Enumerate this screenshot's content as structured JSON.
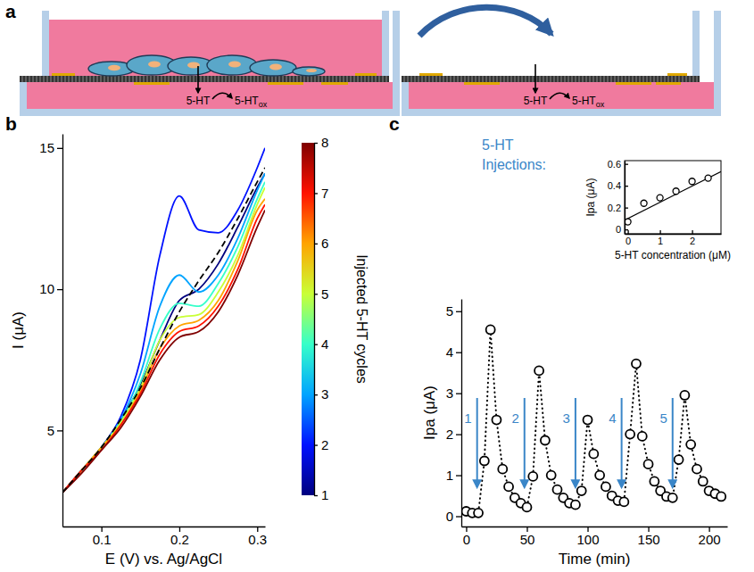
{
  "chart_data": [
    {
      "type": "diagram",
      "panel": "a",
      "labels": {
        "reactant": "5-HT",
        "product": "5-HT",
        "product_subscript": "ox"
      }
    },
    {
      "type": "line",
      "panel": "b",
      "xlabel": "E (V) vs. Ag/AgCl",
      "ylabel": "I (μA)",
      "x": [
        0.05,
        0.075,
        0.1,
        0.125,
        0.15,
        0.175,
        0.2,
        0.225,
        0.25,
        0.275,
        0.3,
        0.31
      ],
      "xlim": [
        0.05,
        0.31
      ],
      "xticks": [
        0.1,
        0.2,
        0.3
      ],
      "ylim": [
        1.6,
        15.5
      ],
      "yticks": [
        5,
        10,
        15
      ],
      "series": [
        {
          "color": "#00007f",
          "cycle": 1,
          "values": [
            2.8,
            3.6,
            4.4,
            5.4,
            6.6,
            8.2,
            9.6,
            10.0,
            10.9,
            12.2,
            13.6,
            14.1
          ]
        },
        {
          "color": "#0012ff",
          "cycle": 2,
          "values": [
            2.8,
            3.6,
            4.4,
            5.5,
            7.5,
            11.2,
            13.3,
            12.1,
            12.0,
            12.8,
            14.3,
            15.0
          ]
        },
        {
          "color": "#00a4ff",
          "cycle": 3,
          "values": [
            2.8,
            3.6,
            4.4,
            5.4,
            7.0,
            9.4,
            10.5,
            9.9,
            10.5,
            11.8,
            13.5,
            14.1
          ]
        },
        {
          "color": "#36ffc9",
          "cycle": 4,
          "values": [
            2.8,
            3.6,
            4.4,
            5.3,
            6.7,
            8.6,
            9.5,
            9.4,
            10.2,
            11.5,
            13.2,
            13.8
          ]
        },
        {
          "color": "#c9ff36",
          "cycle": 5,
          "values": [
            2.8,
            3.6,
            4.4,
            5.3,
            6.5,
            8.2,
            9.0,
            9.1,
            9.9,
            11.2,
            13.0,
            13.6
          ]
        },
        {
          "color": "#ffa400",
          "cycle": 6,
          "values": [
            2.8,
            3.6,
            4.4,
            5.2,
            6.4,
            7.9,
            8.7,
            8.9,
            9.6,
            11.0,
            12.8,
            13.2
          ]
        },
        {
          "color": "#ff1200",
          "cycle": 7,
          "values": [
            2.8,
            3.6,
            4.3,
            5.2,
            6.3,
            7.7,
            8.5,
            8.7,
            9.4,
            10.7,
            12.5,
            13.0
          ]
        },
        {
          "color": "#7f0000",
          "cycle": 8,
          "values": [
            2.8,
            3.5,
            4.3,
            5.1,
            6.2,
            7.5,
            8.3,
            8.5,
            9.2,
            10.5,
            12.2,
            12.8
          ]
        },
        {
          "color": "#000000",
          "line_style": "dashed",
          "values": [
            2.8,
            3.6,
            4.4,
            5.4,
            6.5,
            7.9,
            9.2,
            10.3,
            11.3,
            12.5,
            13.8,
            14.3
          ]
        }
      ],
      "colorbar": {
        "label": "Injected 5-HT cycles",
        "range": [
          1,
          8
        ],
        "ticks": [
          1,
          2,
          3,
          4,
          5,
          6,
          7,
          8
        ]
      }
    },
    {
      "type": "scatter",
      "panel": "c",
      "xlabel": "Time (min)",
      "ylabel": "Ipa (μA)",
      "x": [
        0,
        5,
        10,
        15,
        20,
        25,
        30,
        35,
        40,
        45,
        50,
        55,
        60,
        65,
        70,
        75,
        80,
        85,
        90,
        95,
        100,
        105,
        110,
        115,
        120,
        125,
        130,
        135,
        140,
        145,
        150,
        155,
        160,
        165,
        170,
        175,
        180,
        185,
        190,
        195,
        200,
        205,
        210
      ],
      "values": [
        0.12,
        0.08,
        0.08,
        1.35,
        4.55,
        2.35,
        1.15,
        0.72,
        0.45,
        0.32,
        0.22,
        0.97,
        3.55,
        1.85,
        1.0,
        0.65,
        0.45,
        0.32,
        0.28,
        0.62,
        2.35,
        1.52,
        1.0,
        0.72,
        0.5,
        0.38,
        0.35,
        2.0,
        3.72,
        1.95,
        1.27,
        0.85,
        0.62,
        0.48,
        0.45,
        1.38,
        2.95,
        1.75,
        1.15,
        0.85,
        0.62,
        0.55,
        0.48
      ],
      "marker": "circle",
      "line_style": "dotted",
      "xlim": [
        -4,
        215
      ],
      "xticks": [
        0,
        50,
        100,
        150,
        200
      ],
      "ylim": [
        -0.25,
        5.3
      ],
      "yticks": [
        0,
        1,
        2,
        3,
        4,
        5
      ],
      "annotation_lines": [
        "5-HT",
        "Injections:"
      ],
      "injections": {
        "x": [
          9,
          48,
          90,
          128,
          170
        ],
        "labels": [
          "1",
          "2",
          "3",
          "4",
          "5"
        ]
      },
      "inset": {
        "type": "scatter",
        "xlabel": "5-HT concentration (μM)",
        "ylabel": "Ipa (μA)",
        "x": [
          0,
          0.5,
          1,
          1.5,
          2,
          2.5
        ],
        "values": [
          0.07,
          0.24,
          0.29,
          0.35,
          0.44,
          0.47
        ],
        "marker": "circle",
        "xlim": [
          -0.1,
          2.9
        ],
        "xticks": [
          0,
          1,
          2
        ],
        "ylim": [
          -0.04,
          0.63
        ],
        "yticks": [
          0,
          0.2,
          0.4,
          0.6
        ],
        "fit": {
          "x": [
            -0.1,
            2.9
          ],
          "values": [
            0.085,
            0.53
          ]
        }
      }
    }
  ]
}
